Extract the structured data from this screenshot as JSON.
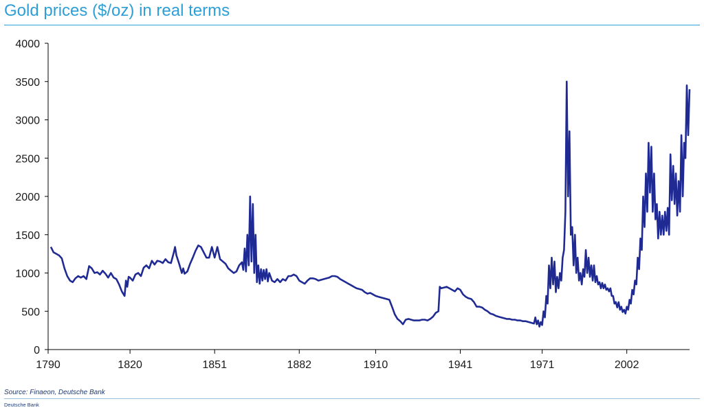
{
  "header": {
    "title": "Gold prices ($/oz) in real terms"
  },
  "footer": {
    "source": "Source: Finaeon, Deutsche Bank",
    "brand": "Deutsche Bank"
  },
  "colors": {
    "line": "#1f2a93",
    "title": "#2e9fd6",
    "axis": "#000000"
  },
  "chart_data": {
    "type": "line",
    "title": "Gold prices ($/oz) in real terms",
    "xlabel": "",
    "ylabel": "",
    "xlim": [
      1790,
      2025
    ],
    "ylim": [
      0,
      4000
    ],
    "x_ticks": [
      1790,
      1820,
      1851,
      1882,
      1910,
      1941,
      1971,
      2002
    ],
    "y_ticks": [
      0,
      500,
      1000,
      1500,
      2000,
      2500,
      3000,
      3500,
      4000
    ],
    "grid": false,
    "legend": "none",
    "series": [
      {
        "points": [
          [
            1791,
            1340
          ],
          [
            1792,
            1270
          ],
          [
            1794,
            1230
          ],
          [
            1795,
            1190
          ],
          [
            1796,
            1060
          ],
          [
            1797,
            960
          ],
          [
            1798,
            900
          ],
          [
            1799,
            880
          ],
          [
            1800,
            930
          ],
          [
            1801,
            960
          ],
          [
            1802,
            940
          ],
          [
            1803,
            960
          ],
          [
            1804,
            920
          ],
          [
            1805,
            1090
          ],
          [
            1806,
            1060
          ],
          [
            1807,
            1000
          ],
          [
            1808,
            1010
          ],
          [
            1809,
            980
          ],
          [
            1810,
            1030
          ],
          [
            1811,
            990
          ],
          [
            1812,
            940
          ],
          [
            1813,
            1000
          ],
          [
            1814,
            940
          ],
          [
            1815,
            920
          ],
          [
            1816,
            850
          ],
          [
            1817,
            760
          ],
          [
            1818,
            700
          ],
          [
            1818.5,
            900
          ],
          [
            1819,
            820
          ],
          [
            1819.5,
            950
          ],
          [
            1820,
            940
          ],
          [
            1821,
            900
          ],
          [
            1822,
            980
          ],
          [
            1823,
            1000
          ],
          [
            1824,
            960
          ],
          [
            1825,
            1070
          ],
          [
            1826,
            1100
          ],
          [
            1827,
            1060
          ],
          [
            1828,
            1160
          ],
          [
            1829,
            1110
          ],
          [
            1830,
            1160
          ],
          [
            1831,
            1150
          ],
          [
            1832,
            1130
          ],
          [
            1833,
            1180
          ],
          [
            1834,
            1140
          ],
          [
            1835,
            1130
          ],
          [
            1836,
            1260
          ],
          [
            1836.5,
            1340
          ],
          [
            1837,
            1230
          ],
          [
            1838,
            1120
          ],
          [
            1839,
            1000
          ],
          [
            1839.5,
            1060
          ],
          [
            1840,
            990
          ],
          [
            1841,
            1020
          ],
          [
            1842,
            1120
          ],
          [
            1843,
            1200
          ],
          [
            1844,
            1290
          ],
          [
            1845,
            1360
          ],
          [
            1846,
            1340
          ],
          [
            1847,
            1270
          ],
          [
            1848,
            1200
          ],
          [
            1849,
            1200
          ],
          [
            1850,
            1340
          ],
          [
            1851,
            1200
          ],
          [
            1852,
            1340
          ],
          [
            1853,
            1180
          ],
          [
            1854,
            1150
          ],
          [
            1855,
            1120
          ],
          [
            1856,
            1060
          ],
          [
            1857,
            1030
          ],
          [
            1858,
            1000
          ],
          [
            1859,
            1020
          ],
          [
            1860,
            1100
          ],
          [
            1861,
            1140
          ],
          [
            1861.5,
            1040
          ],
          [
            1862,
            1320
          ],
          [
            1862.5,
            1020
          ],
          [
            1863,
            1500
          ],
          [
            1863.5,
            1100
          ],
          [
            1864,
            2000
          ],
          [
            1864.5,
            1150
          ],
          [
            1865,
            1900
          ],
          [
            1865.5,
            1000
          ],
          [
            1866,
            1500
          ],
          [
            1866.5,
            880
          ],
          [
            1867,
            1100
          ],
          [
            1867.5,
            860
          ],
          [
            1868,
            1050
          ],
          [
            1868.5,
            900
          ],
          [
            1869,
            1040
          ],
          [
            1869.5,
            920
          ],
          [
            1870,
            1050
          ],
          [
            1870.5,
            890
          ],
          [
            1871,
            1000
          ],
          [
            1872,
            900
          ],
          [
            1873,
            880
          ],
          [
            1874,
            920
          ],
          [
            1875,
            880
          ],
          [
            1876,
            920
          ],
          [
            1877,
            900
          ],
          [
            1878,
            960
          ],
          [
            1879,
            960
          ],
          [
            1880,
            980
          ],
          [
            1881,
            960
          ],
          [
            1882,
            900
          ],
          [
            1883,
            880
          ],
          [
            1884,
            860
          ],
          [
            1885,
            900
          ],
          [
            1886,
            930
          ],
          [
            1887,
            930
          ],
          [
            1888,
            920
          ],
          [
            1889,
            900
          ],
          [
            1890,
            910
          ],
          [
            1891,
            920
          ],
          [
            1892,
            930
          ],
          [
            1893,
            940
          ],
          [
            1894,
            960
          ],
          [
            1895,
            960
          ],
          [
            1896,
            950
          ],
          [
            1897,
            920
          ],
          [
            1898,
            900
          ],
          [
            1899,
            880
          ],
          [
            1900,
            860
          ],
          [
            1901,
            840
          ],
          [
            1902,
            820
          ],
          [
            1903,
            800
          ],
          [
            1904,
            790
          ],
          [
            1905,
            780
          ],
          [
            1906,
            750
          ],
          [
            1907,
            730
          ],
          [
            1908,
            740
          ],
          [
            1909,
            720
          ],
          [
            1910,
            700
          ],
          [
            1911,
            690
          ],
          [
            1912,
            680
          ],
          [
            1913,
            670
          ],
          [
            1914,
            660
          ],
          [
            1915,
            650
          ],
          [
            1916,
            560
          ],
          [
            1917,
            460
          ],
          [
            1918,
            400
          ],
          [
            1919,
            370
          ],
          [
            1920,
            330
          ],
          [
            1921,
            390
          ],
          [
            1922,
            400
          ],
          [
            1923,
            390
          ],
          [
            1924,
            380
          ],
          [
            1925,
            380
          ],
          [
            1926,
            380
          ],
          [
            1927,
            390
          ],
          [
            1928,
            390
          ],
          [
            1929,
            380
          ],
          [
            1930,
            400
          ],
          [
            1931,
            430
          ],
          [
            1932,
            480
          ],
          [
            1933,
            500
          ],
          [
            1933.5,
            820
          ],
          [
            1934,
            800
          ],
          [
            1935,
            810
          ],
          [
            1936,
            820
          ],
          [
            1937,
            800
          ],
          [
            1938,
            780
          ],
          [
            1939,
            760
          ],
          [
            1940,
            800
          ],
          [
            1941,
            780
          ],
          [
            1942,
            720
          ],
          [
            1943,
            690
          ],
          [
            1944,
            670
          ],
          [
            1945,
            660
          ],
          [
            1946,
            620
          ],
          [
            1947,
            560
          ],
          [
            1948,
            560
          ],
          [
            1949,
            550
          ],
          [
            1950,
            520
          ],
          [
            1951,
            500
          ],
          [
            1952,
            470
          ],
          [
            1953,
            460
          ],
          [
            1954,
            440
          ],
          [
            1955,
            430
          ],
          [
            1956,
            420
          ],
          [
            1957,
            410
          ],
          [
            1958,
            400
          ],
          [
            1959,
            400
          ],
          [
            1960,
            390
          ],
          [
            1961,
            390
          ],
          [
            1962,
            380
          ],
          [
            1963,
            380
          ],
          [
            1964,
            370
          ],
          [
            1965,
            370
          ],
          [
            1966,
            360
          ],
          [
            1967,
            350
          ],
          [
            1968,
            340
          ],
          [
            1968.5,
            420
          ],
          [
            1969,
            330
          ],
          [
            1969.5,
            380
          ],
          [
            1970,
            300
          ],
          [
            1970.5,
            360
          ],
          [
            1971,
            320
          ],
          [
            1971.5,
            500
          ],
          [
            1972,
            420
          ],
          [
            1972.5,
            700
          ],
          [
            1973,
            600
          ],
          [
            1973.5,
            1100
          ],
          [
            1974,
            800
          ],
          [
            1974.5,
            1200
          ],
          [
            1975,
            850
          ],
          [
            1975.5,
            1150
          ],
          [
            1976,
            750
          ],
          [
            1976.5,
            950
          ],
          [
            1977,
            800
          ],
          [
            1977.5,
            1000
          ],
          [
            1978,
            900
          ],
          [
            1978.5,
            1200
          ],
          [
            1979,
            1300
          ],
          [
            1979.5,
            1800
          ],
          [
            1980,
            3500
          ],
          [
            1980.5,
            2000
          ],
          [
            1981,
            2850
          ],
          [
            1981.5,
            1500
          ],
          [
            1982,
            1600
          ],
          [
            1982.5,
            1100
          ],
          [
            1983,
            1500
          ],
          [
            1983.5,
            1000
          ],
          [
            1984,
            1200
          ],
          [
            1984.5,
            900
          ],
          [
            1985,
            1000
          ],
          [
            1985.5,
            850
          ],
          [
            1986,
            1050
          ],
          [
            1986.5,
            950
          ],
          [
            1987,
            1300
          ],
          [
            1987.5,
            1000
          ],
          [
            1988,
            1200
          ],
          [
            1988.5,
            950
          ],
          [
            1989,
            1100
          ],
          [
            1989.5,
            900
          ],
          [
            1990,
            1100
          ],
          [
            1990.5,
            880
          ],
          [
            1991,
            960
          ],
          [
            1991.5,
            850
          ],
          [
            1992,
            880
          ],
          [
            1992.5,
            800
          ],
          [
            1993,
            870
          ],
          [
            1993.5,
            800
          ],
          [
            1994,
            850
          ],
          [
            1994.5,
            780
          ],
          [
            1995,
            800
          ],
          [
            1995.5,
            760
          ],
          [
            1996,
            800
          ],
          [
            1996.5,
            700
          ],
          [
            1997,
            700
          ],
          [
            1997.5,
            600
          ],
          [
            1998,
            620
          ],
          [
            1998.5,
            550
          ],
          [
            1999,
            620
          ],
          [
            1999.5,
            520
          ],
          [
            2000,
            560
          ],
          [
            2000.5,
            490
          ],
          [
            2001,
            520
          ],
          [
            2001.5,
            470
          ],
          [
            2002,
            560
          ],
          [
            2002.5,
            520
          ],
          [
            2003,
            650
          ],
          [
            2003.5,
            600
          ],
          [
            2004,
            780
          ],
          [
            2004.5,
            720
          ],
          [
            2005,
            900
          ],
          [
            2005.5,
            850
          ],
          [
            2006,
            1200
          ],
          [
            2006.5,
            1050
          ],
          [
            2007,
            1450
          ],
          [
            2007.5,
            1300
          ],
          [
            2008,
            2000
          ],
          [
            2008.5,
            1600
          ],
          [
            2009,
            2300
          ],
          [
            2009.5,
            1800
          ],
          [
            2010,
            2700
          ],
          [
            2010.5,
            2050
          ],
          [
            2011,
            2650
          ],
          [
            2011.5,
            1800
          ],
          [
            2012,
            2300
          ],
          [
            2012.5,
            1700
          ],
          [
            2013,
            1900
          ],
          [
            2013.5,
            1450
          ],
          [
            2014,
            1800
          ],
          [
            2014.5,
            1500
          ],
          [
            2015,
            1750
          ],
          [
            2015.5,
            1500
          ],
          [
            2016,
            1800
          ],
          [
            2016.5,
            1550
          ],
          [
            2017,
            1850
          ],
          [
            2017.5,
            1500
          ],
          [
            2018,
            2550
          ],
          [
            2018.5,
            1950
          ],
          [
            2019,
            2400
          ],
          [
            2019.5,
            1900
          ],
          [
            2020,
            2300
          ],
          [
            2020.5,
            1750
          ],
          [
            2021,
            2200
          ],
          [
            2021.5,
            1800
          ],
          [
            2022,
            2800
          ],
          [
            2022.5,
            2000
          ],
          [
            2023,
            2700
          ],
          [
            2023.5,
            2500
          ],
          [
            2024,
            3450
          ],
          [
            2024.5,
            2800
          ],
          [
            2025,
            3400
          ]
        ]
      }
    ]
  }
}
